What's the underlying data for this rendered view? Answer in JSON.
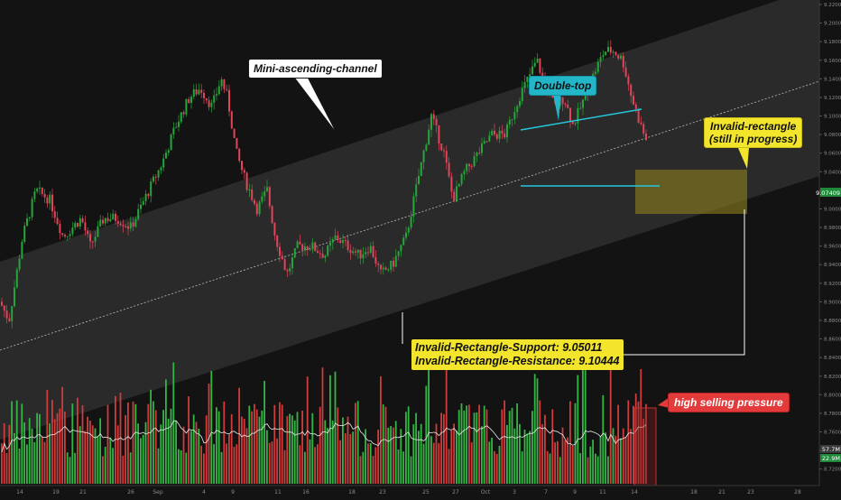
{
  "colors": {
    "background": "#131313",
    "channel_fill": "#2a2a2a",
    "candle_up": "#26a63a",
    "candle_down": "#e0455a",
    "volume_up": "#33b544",
    "volume_down": "#d23b3b",
    "volume_ma": "#e8e8e8",
    "doubletop_line": "#22c7dc",
    "rectangle_fill": "#8a7d1f",
    "axis_text": "#8a8a8a",
    "price_tag": "#1f8a3a",
    "ma_tag": "#3a3a3a"
  },
  "chart_data": {
    "type": "candlestick",
    "y_axis": {
      "min": 8.71,
      "max": 9.22,
      "ticks": [
        "9.22000",
        "9.20000",
        "9.18000",
        "9.16000",
        "9.14000",
        "9.12000",
        "9.10000",
        "9.08000",
        "9.06000",
        "9.04000",
        "9.02000",
        "9.00000",
        "8.98000",
        "8.96000",
        "8.94000",
        "8.92000",
        "8.90000",
        "8.88000",
        "8.86000",
        "8.84000",
        "8.82000",
        "8.80000",
        "8.78000",
        "8.76000",
        "8.74000",
        "8.72000"
      ],
      "last_price_tag": "9.07409",
      "volume_ma_tag": "57.7M",
      "volume_tag": "22.9M"
    },
    "x_axis": {
      "ticks": [
        "14",
        "19",
        "21",
        "26",
        "Sep",
        "4",
        "9",
        "11",
        "16",
        "18",
        "23",
        "25",
        "27",
        "Oct",
        "3",
        "7",
        "9",
        "11",
        "14",
        "18",
        "21",
        "23",
        "28"
      ]
    },
    "price_path": [
      [
        0,
        8.9
      ],
      [
        10,
        8.88
      ],
      [
        25,
        8.97
      ],
      [
        40,
        9.02
      ],
      [
        55,
        9.01
      ],
      [
        70,
        8.97
      ],
      [
        90,
        8.99
      ],
      [
        100,
        8.96
      ],
      [
        115,
        8.99
      ],
      [
        130,
        8.99
      ],
      [
        145,
        8.98
      ],
      [
        160,
        9.01
      ],
      [
        180,
        9.05
      ],
      [
        195,
        9.09
      ],
      [
        210,
        9.12
      ],
      [
        222,
        9.13
      ],
      [
        235,
        9.11
      ],
      [
        245,
        9.14
      ],
      [
        252,
        9.12
      ],
      [
        262,
        9.06
      ],
      [
        272,
        9.03
      ],
      [
        285,
        9.0
      ],
      [
        296,
        9.02
      ],
      [
        305,
        8.97
      ],
      [
        318,
        8.93
      ],
      [
        330,
        8.96
      ],
      [
        345,
        8.96
      ],
      [
        360,
        8.95
      ],
      [
        372,
        8.97
      ],
      [
        385,
        8.96
      ],
      [
        398,
        8.95
      ],
      [
        410,
        8.96
      ],
      [
        422,
        8.93
      ],
      [
        435,
        8.94
      ],
      [
        450,
        8.97
      ],
      [
        465,
        9.04
      ],
      [
        478,
        9.1
      ],
      [
        492,
        9.06
      ],
      [
        502,
        9.01
      ],
      [
        515,
        9.04
      ],
      [
        530,
        9.06
      ],
      [
        545,
        9.08
      ],
      [
        560,
        9.08
      ],
      [
        575,
        9.12
      ],
      [
        585,
        9.14
      ],
      [
        595,
        9.16
      ],
      [
        605,
        9.13
      ],
      [
        615,
        9.11
      ],
      [
        625,
        9.12
      ],
      [
        635,
        9.09
      ],
      [
        648,
        9.12
      ],
      [
        660,
        9.15
      ],
      [
        670,
        9.17
      ],
      [
        680,
        9.17
      ],
      [
        690,
        9.16
      ],
      [
        700,
        9.12
      ],
      [
        710,
        9.09
      ],
      [
        716,
        9.074
      ]
    ],
    "volume_max": 120
  },
  "annotations": {
    "channel": "Mini-ascending-channel",
    "double_top": "Double-top",
    "rectangle_line1": "Invalid-rectangle",
    "rectangle_line2": "(still in progress)",
    "support": "Invalid-Rectangle-Support: 9.05011",
    "resistance": "Invalid-Rectangle-Resistance: 9.10444",
    "pressure": "high selling pressure"
  }
}
